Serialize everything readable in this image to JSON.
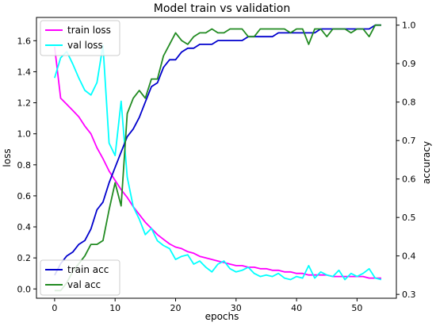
{
  "chart_data": {
    "type": "line",
    "title": "Model train vs validation",
    "xlabel": "epochs",
    "ylabel_left": "loss",
    "ylabel_right": "accuracy",
    "xlim": [
      -3,
      56.5
    ],
    "ylim_left": [
      -0.06,
      1.75
    ],
    "ylim_right": [
      0.29,
      1.02
    ],
    "xticks": [
      0,
      10,
      20,
      30,
      40,
      50
    ],
    "yticks_left": [
      0.0,
      0.2,
      0.4,
      0.6,
      0.8,
      1.0,
      1.2,
      1.4,
      1.6
    ],
    "yticks_right": [
      0.3,
      0.4,
      0.5,
      0.6,
      0.7,
      0.8,
      0.9,
      1.0
    ],
    "ytick_labels_left": [
      "0.0",
      "0.2",
      "0.4",
      "0.6",
      "0.8",
      "1.0",
      "1.2",
      "1.4",
      "1.6"
    ],
    "ytick_labels_right": [
      "0.3",
      "0.4",
      "0.5",
      "0.6",
      "0.7",
      "0.8",
      "0.9",
      "1.0"
    ],
    "grid": false,
    "legend_loss": {
      "placement": "upper-left"
    },
    "legend_acc": {
      "placement": "lower-left"
    },
    "x": [
      0,
      1,
      2,
      3,
      4,
      5,
      6,
      7,
      8,
      9,
      10,
      11,
      12,
      13,
      14,
      15,
      16,
      17,
      18,
      19,
      20,
      21,
      22,
      23,
      24,
      25,
      26,
      27,
      28,
      29,
      30,
      31,
      32,
      33,
      34,
      35,
      36,
      37,
      38,
      39,
      40,
      41,
      42,
      43,
      44,
      45,
      46,
      47,
      48,
      49,
      50,
      51,
      52,
      53,
      54
    ],
    "series": [
      {
        "name": "train loss",
        "axis": "left",
        "color": "#ff00ff",
        "values": [
          1.56,
          1.23,
          1.19,
          1.15,
          1.11,
          1.05,
          1.0,
          0.91,
          0.84,
          0.76,
          0.7,
          0.64,
          0.59,
          0.53,
          0.48,
          0.43,
          0.39,
          0.35,
          0.32,
          0.29,
          0.27,
          0.26,
          0.24,
          0.23,
          0.21,
          0.2,
          0.19,
          0.18,
          0.17,
          0.16,
          0.15,
          0.15,
          0.14,
          0.14,
          0.13,
          0.13,
          0.12,
          0.12,
          0.11,
          0.11,
          0.1,
          0.1,
          0.09,
          0.09,
          0.09,
          0.09,
          0.08,
          0.08,
          0.08,
          0.08,
          0.08,
          0.08,
          0.07,
          0.07,
          0.07
        ]
      },
      {
        "name": "val loss",
        "axis": "left",
        "color": "#00ffff",
        "values": [
          1.36,
          1.49,
          1.53,
          1.45,
          1.36,
          1.28,
          1.25,
          1.33,
          1.57,
          0.94,
          0.86,
          1.21,
          0.72,
          0.53,
          0.45,
          0.35,
          0.39,
          0.31,
          0.28,
          0.26,
          0.19,
          0.21,
          0.22,
          0.16,
          0.18,
          0.14,
          0.11,
          0.16,
          0.18,
          0.13,
          0.11,
          0.12,
          0.14,
          0.1,
          0.08,
          0.09,
          0.08,
          0.1,
          0.07,
          0.06,
          0.08,
          0.07,
          0.15,
          0.07,
          0.11,
          0.09,
          0.08,
          0.12,
          0.06,
          0.1,
          0.08,
          0.1,
          0.13,
          0.07,
          0.06
        ]
      },
      {
        "name": "train acc",
        "axis": "right",
        "color": "#0000cd",
        "values": [
          0.35,
          0.38,
          0.4,
          0.41,
          0.43,
          0.44,
          0.47,
          0.52,
          0.54,
          0.59,
          0.63,
          0.67,
          0.71,
          0.73,
          0.76,
          0.8,
          0.84,
          0.85,
          0.89,
          0.91,
          0.91,
          0.93,
          0.94,
          0.94,
          0.95,
          0.95,
          0.95,
          0.96,
          0.96,
          0.96,
          0.96,
          0.96,
          0.97,
          0.97,
          0.97,
          0.97,
          0.97,
          0.98,
          0.98,
          0.98,
          0.98,
          0.98,
          0.98,
          0.98,
          0.99,
          0.99,
          0.99,
          0.99,
          0.99,
          0.99,
          0.99,
          0.99,
          0.99,
          1.0,
          1.0
        ]
      },
      {
        "name": "val acc",
        "axis": "right",
        "color": "#228b22",
        "values": [
          0.31,
          0.31,
          0.33,
          0.36,
          0.38,
          0.4,
          0.43,
          0.43,
          0.44,
          0.52,
          0.59,
          0.53,
          0.77,
          0.81,
          0.83,
          0.81,
          0.86,
          0.86,
          0.92,
          0.95,
          0.98,
          0.96,
          0.95,
          0.97,
          0.98,
          0.98,
          0.99,
          0.98,
          0.98,
          0.99,
          0.99,
          0.99,
          0.97,
          0.97,
          0.99,
          0.99,
          0.99,
          0.99,
          0.99,
          0.98,
          0.99,
          0.99,
          0.95,
          0.99,
          0.99,
          0.97,
          0.99,
          0.99,
          0.99,
          0.98,
          0.99,
          0.99,
          0.97,
          1.0,
          1.0
        ]
      }
    ]
  }
}
